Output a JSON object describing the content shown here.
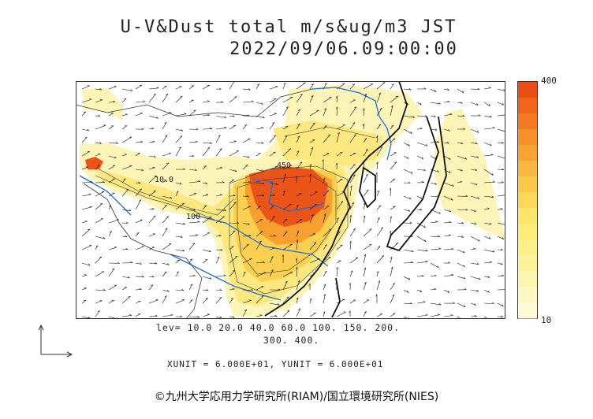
{
  "title": {
    "line1": "U-V&Dust total m/s&ug/m3 JST",
    "line2": "2022/09/06.09:00:00"
  },
  "colorbar": {
    "max_label": "400",
    "min_label": "10",
    "colors": [
      "#e84e16",
      "#f0641c",
      "#f47a22",
      "#f78f2a",
      "#f9a334",
      "#fab640",
      "#fbc84c",
      "#fcd85a",
      "#fde46a",
      "#fdec7a",
      "#fdf08a",
      "#fdf39c",
      "#fdf6b0",
      "#fdf8c4",
      "#fefad6"
    ]
  },
  "levels": {
    "line1": "lev= 10.0 20.0 40.0 60.0 100. 150. 200.",
    "line2": "300. 400."
  },
  "units": "XUNIT = 6.000E+01, YUNIT = 6.000E+01",
  "copyright": "©九州大学応用力学研究所(RIAM)/国立環境研究所(NIES)",
  "contour_labels": [
    "10.0",
    "450",
    "100"
  ],
  "map_colors": {
    "light": "#fdf5b8",
    "yellow": "#fde880",
    "deep_yellow": "#fbd050",
    "orange": "#f7a030",
    "red": "#ea5418",
    "river": "#1a6fe0",
    "coast": "#111111",
    "border": "#333333"
  }
}
